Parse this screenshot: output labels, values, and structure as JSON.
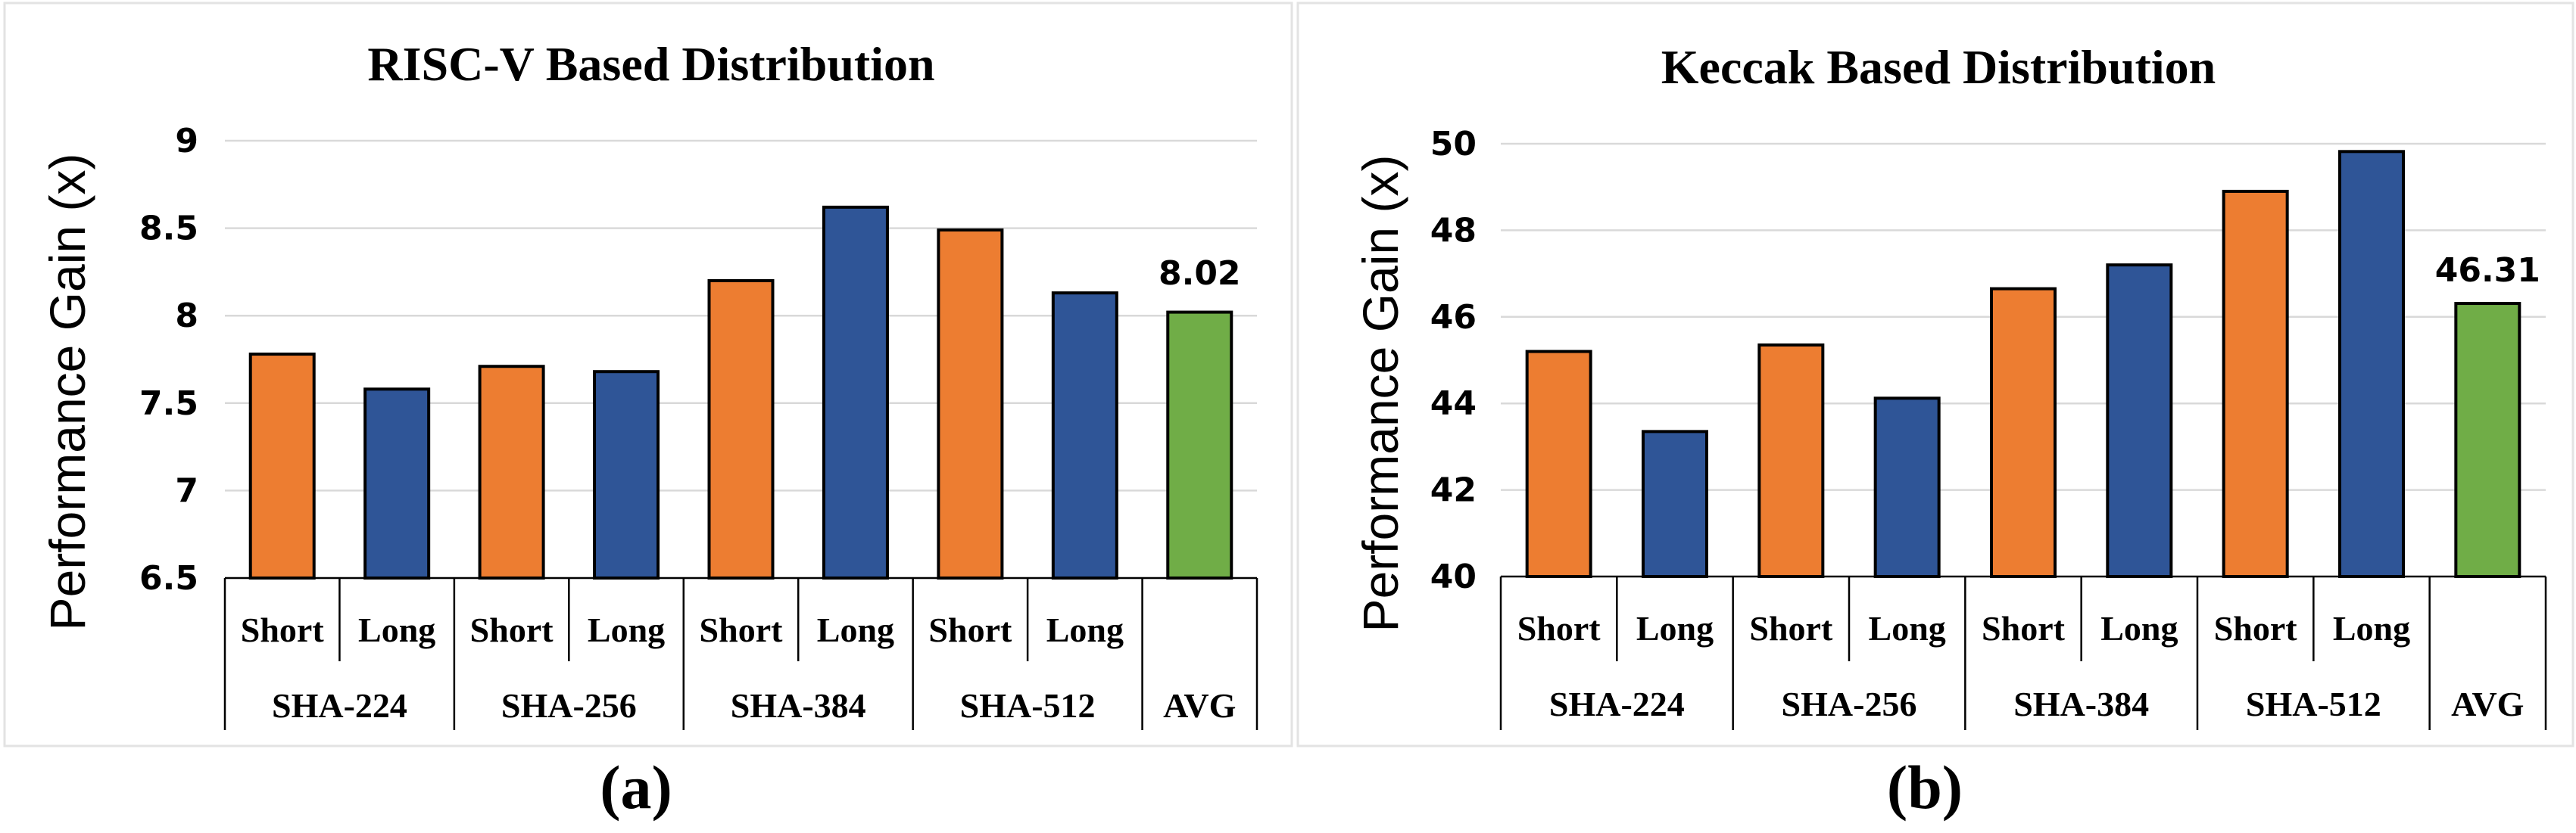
{
  "colors": {
    "short": "#ED7D31",
    "long": "#2F5597",
    "avg": "#70AD47"
  },
  "chart_data": [
    {
      "type": "bar",
      "title": "RISC-V Based Distribution",
      "caption": "(a)",
      "ylabel": "Performance Gain (x)",
      "xlabel": "",
      "ylim": [
        6.5,
        9
      ],
      "yticks": [
        6.5,
        7,
        7.5,
        8,
        8.5,
        9
      ],
      "ytick_labels": [
        "6.5",
        "7",
        "7.5",
        "8",
        "8.5",
        "9"
      ],
      "grid": true,
      "groups": [
        "SHA-224",
        "SHA-256",
        "SHA-384",
        "SHA-512",
        "AVG"
      ],
      "bars": [
        {
          "group": "SHA-224",
          "label": "Short",
          "value": 7.78,
          "kind": "short"
        },
        {
          "group": "SHA-224",
          "label": "Long",
          "value": 7.58,
          "kind": "long"
        },
        {
          "group": "SHA-256",
          "label": "Short",
          "value": 7.71,
          "kind": "short"
        },
        {
          "group": "SHA-256",
          "label": "Long",
          "value": 7.68,
          "kind": "long"
        },
        {
          "group": "SHA-384",
          "label": "Short",
          "value": 8.2,
          "kind": "short"
        },
        {
          "group": "SHA-384",
          "label": "Long",
          "value": 8.62,
          "kind": "long"
        },
        {
          "group": "SHA-512",
          "label": "Short",
          "value": 8.49,
          "kind": "short"
        },
        {
          "group": "SHA-512",
          "label": "Long",
          "value": 8.13,
          "kind": "long"
        },
        {
          "group": "AVG",
          "label": "",
          "value": 8.02,
          "kind": "avg",
          "data_label": "8.02"
        }
      ]
    },
    {
      "type": "bar",
      "title": "Keccak Based Distribution",
      "caption": "(b)",
      "ylabel": "Performance Gain (x)",
      "xlabel": "",
      "ylim": [
        40,
        50
      ],
      "yticks": [
        40,
        42,
        44,
        46,
        48,
        50
      ],
      "ytick_labels": [
        "40",
        "42",
        "44",
        "46",
        "48",
        "50"
      ],
      "grid": true,
      "groups": [
        "SHA-224",
        "SHA-256",
        "SHA-384",
        "SHA-512",
        "AVG"
      ],
      "bars": [
        {
          "group": "SHA-224",
          "label": "Short",
          "value": 45.2,
          "kind": "short"
        },
        {
          "group": "SHA-224",
          "label": "Long",
          "value": 43.35,
          "kind": "long"
        },
        {
          "group": "SHA-256",
          "label": "Short",
          "value": 45.35,
          "kind": "short"
        },
        {
          "group": "SHA-256",
          "label": "Long",
          "value": 44.12,
          "kind": "long"
        },
        {
          "group": "SHA-384",
          "label": "Short",
          "value": 46.65,
          "kind": "short"
        },
        {
          "group": "SHA-384",
          "label": "Long",
          "value": 47.2,
          "kind": "long"
        },
        {
          "group": "SHA-512",
          "label": "Short",
          "value": 48.9,
          "kind": "short"
        },
        {
          "group": "SHA-512",
          "label": "Long",
          "value": 49.82,
          "kind": "long"
        },
        {
          "group": "AVG",
          "label": "",
          "value": 46.31,
          "kind": "avg",
          "data_label": "46.31"
        }
      ]
    }
  ]
}
